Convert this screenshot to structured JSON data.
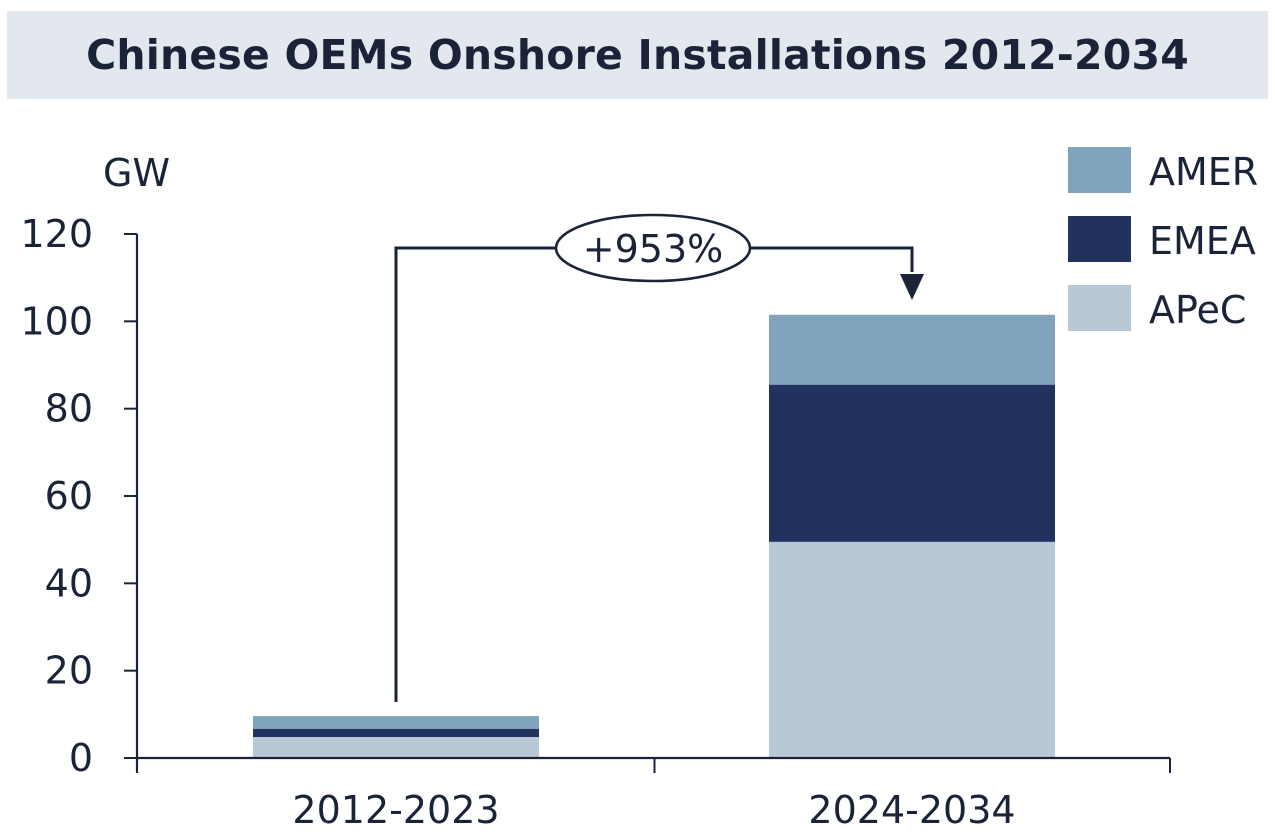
{
  "title": "Chinese OEMs Onshore Installations 2012-2034",
  "chart_data": {
    "type": "bar",
    "stacked": true,
    "title": "Chinese OEMs Onshore Installations 2012-2034",
    "ylabel": "GW",
    "xlabel": "",
    "ylim": [
      0,
      120
    ],
    "yticks": [
      0,
      20,
      40,
      60,
      80,
      100,
      120
    ],
    "categories": [
      "2012-2023",
      "2024-2034"
    ],
    "series": [
      {
        "name": "APeC",
        "color": "#b8c8d5",
        "values": [
          4.8,
          49.5
        ]
      },
      {
        "name": "EMEA",
        "color": "#22325f",
        "values": [
          1.9,
          36.0
        ]
      },
      {
        "name": "AMER",
        "color": "#7fa4bb",
        "values": [
          2.9,
          16.0
        ]
      }
    ],
    "legend": {
      "position": "top-right",
      "order": [
        "AMER",
        "EMEA",
        "APeC"
      ]
    },
    "annotation": {
      "text": "+953%",
      "from": "2012-2023",
      "to": "2024-2034"
    },
    "grid": false
  }
}
